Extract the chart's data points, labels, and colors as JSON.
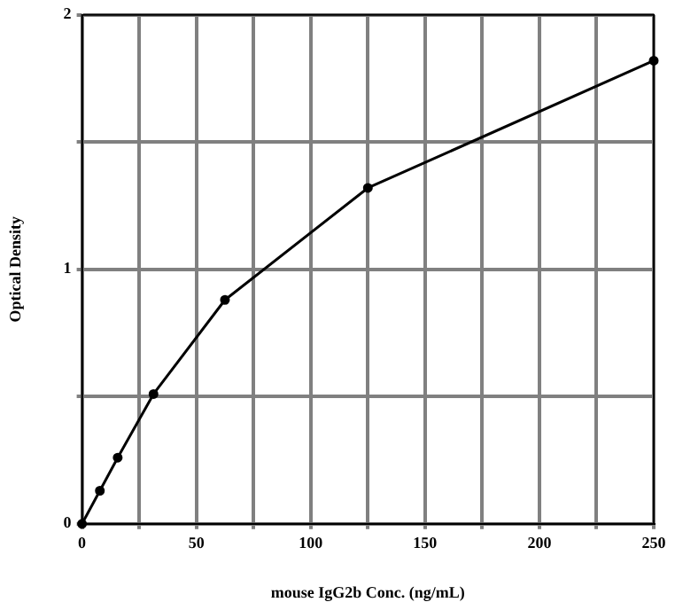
{
  "chart_data": {
    "type": "line",
    "xlabel": "mouse IgG2b Conc. (ng/mL)",
    "ylabel": "Optical Density",
    "x": [
      0,
      7.8,
      15.6,
      31.25,
      62.5,
      125,
      250
    ],
    "series": [
      {
        "color": "#000000",
        "values": [
          0,
          0.13,
          0.26,
          0.51,
          0.88,
          1.32,
          1.82
        ]
      }
    ],
    "xlim": [
      0,
      250
    ],
    "xticks": [
      0,
      {
        "value": 25,
        "label": null
      },
      50,
      {
        "value": 75,
        "label": null
      },
      100,
      {
        "value": 125,
        "label": null
      },
      150,
      {
        "value": 175,
        "label": null
      },
      200,
      {
        "value": 225,
        "label": null
      },
      250
    ],
    "ylim": [
      0,
      2
    ],
    "yticks": [
      0,
      {
        "value": 0.5,
        "label": null
      },
      1,
      {
        "value": 1.5,
        "label": null
      },
      2
    ],
    "grid": true,
    "legend": false,
    "marker": "circle",
    "line_style": "solid"
  }
}
